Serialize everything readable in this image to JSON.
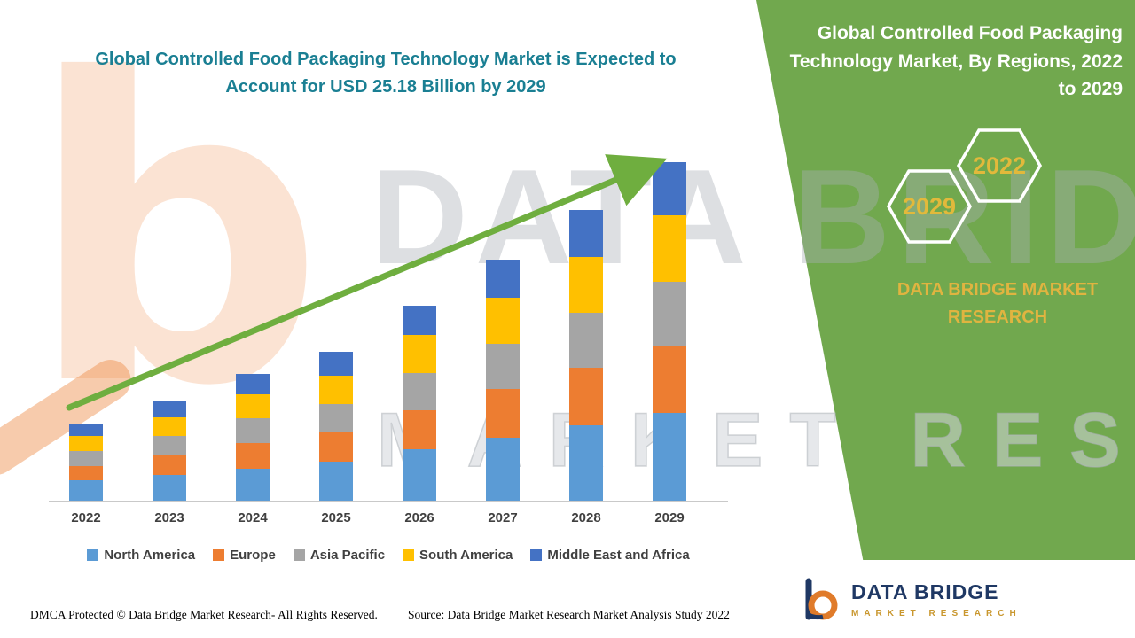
{
  "header": {
    "title_line1": "Global Controlled Food Packaging Technology Market is Expected to",
    "title_line2": "Account for USD 25.18 Billion by 2029"
  },
  "panel": {
    "title": "Global Controlled Food Packaging Technology Market, By Regions, 2022 to 2029",
    "year_back": "2022",
    "year_front": "2029",
    "brand_line1": "DATA BRIDGE MARKET",
    "brand_line2": "RESEARCH",
    "panel_color": "#71A84E",
    "accent_gold": "#E2B93B"
  },
  "watermark": {
    "glyph": "b",
    "word1": "DATA BRIDGE",
    "word2": "MARKET RESEARCH"
  },
  "chart_data": {
    "type": "bar",
    "stacked": true,
    "title": "Global Controlled Food Packaging Technology Market is Expected to Account for USD 25.18 Billion by 2029",
    "unit": "USD Billion",
    "categories": [
      "2022",
      "2023",
      "2024",
      "2025",
      "2026",
      "2027",
      "2028",
      "2029"
    ],
    "series": [
      {
        "name": "North America",
        "color": "#5B9BD5",
        "values": [
          1.5,
          1.9,
          2.4,
          2.9,
          3.8,
          4.7,
          5.6,
          6.5
        ]
      },
      {
        "name": "Europe",
        "color": "#ED7D31",
        "values": [
          1.1,
          1.5,
          1.9,
          2.2,
          2.9,
          3.6,
          4.3,
          5.0
        ]
      },
      {
        "name": "Asia Pacific",
        "color": "#A5A5A5",
        "values": [
          1.1,
          1.4,
          1.8,
          2.1,
          2.8,
          3.4,
          4.1,
          4.8
        ]
      },
      {
        "name": "South America",
        "color": "#FFC000",
        "values": [
          1.1,
          1.4,
          1.8,
          2.1,
          2.8,
          3.4,
          4.1,
          4.9
        ]
      },
      {
        "name": "Middle East and Africa",
        "color": "#4472C4",
        "values": [
          0.9,
          1.2,
          1.5,
          1.8,
          2.2,
          2.8,
          3.5,
          3.98
        ]
      }
    ],
    "totals": [
      5.7,
      7.4,
      9.4,
      11.1,
      14.5,
      17.9,
      21.6,
      25.18
    ],
    "ylim": [
      0,
      25.18
    ],
    "xlabel": "",
    "ylabel": "",
    "grid": false,
    "legend_position": "bottom",
    "annotations": [
      "green upward trend arrow from 2022 toward 2029"
    ],
    "arrow_color": "#6FAE3F"
  },
  "footer": {
    "dmca": "DMCA Protected © Data Bridge Market Research- All Rights Reserved.",
    "source": "Source: Data Bridge Market Research Market Analysis Study 2022"
  },
  "logo": {
    "name": "DATA BRIDGE",
    "tagline": "MARKET RESEARCH"
  }
}
